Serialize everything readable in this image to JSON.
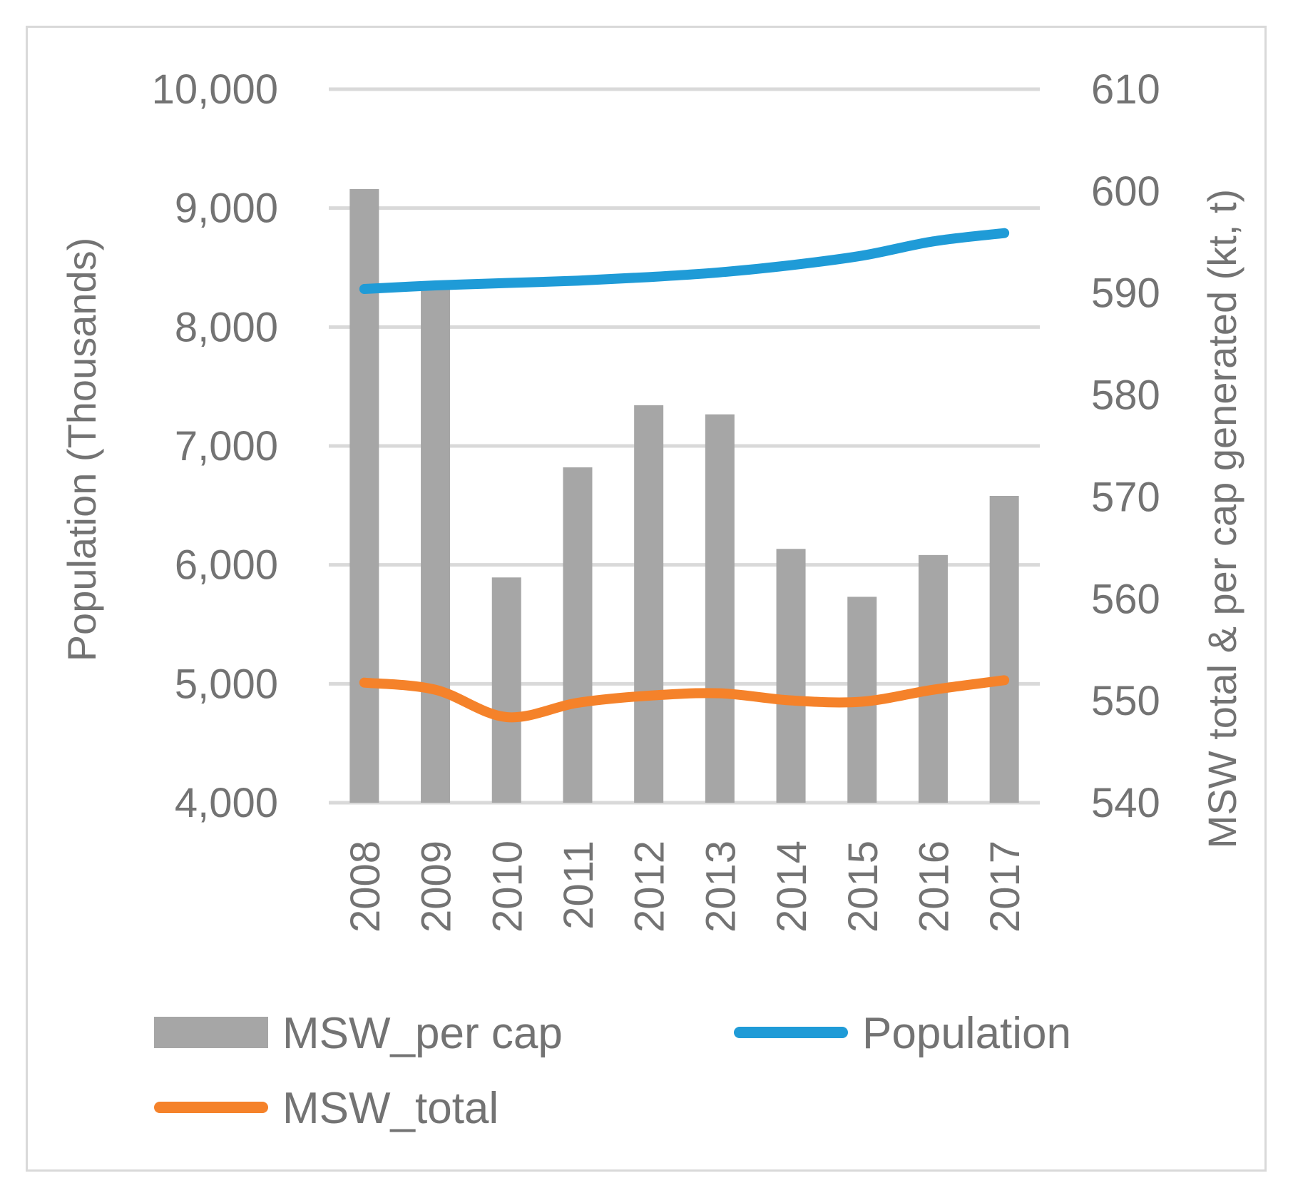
{
  "chart_data": {
    "type": "bar+line",
    "categories": [
      "2008",
      "2009",
      "2010",
      "2011",
      "2012",
      "2013",
      "2014",
      "2015",
      "2016",
      "2017"
    ],
    "y_left": {
      "label": "Population (Thousands)",
      "ylim": [
        4000,
        10000
      ],
      "ticks": [
        4000,
        5000,
        6000,
        7000,
        8000,
        9000,
        10000
      ],
      "tick_labels": [
        "4,000",
        "5,000",
        "6,000",
        "7,000",
        "8,000",
        "9,000",
        "10,000"
      ]
    },
    "y_right": {
      "label": "MSW total & per cap generated (kt, t)",
      "ylim": [
        540,
        610
      ],
      "ticks": [
        540,
        550,
        560,
        570,
        580,
        590,
        600,
        610
      ],
      "tick_labels": [
        "540",
        "550",
        "560",
        "570",
        "580",
        "590",
        "600",
        "610"
      ]
    },
    "series": [
      {
        "name": "MSW_per cap",
        "type": "bar",
        "axis": "right",
        "color": "#a6a6a6",
        "values": [
          600.2,
          590.5,
          562.1,
          572.9,
          579.0,
          578.1,
          564.9,
          560.2,
          564.3,
          570.1
        ]
      },
      {
        "name": "Population",
        "type": "line",
        "axis": "left",
        "color": "#1f9bd7",
        "values": [
          8320,
          8350,
          8370,
          8390,
          8420,
          8460,
          8520,
          8600,
          8720,
          8790
        ]
      },
      {
        "name": "MSW_total",
        "type": "line",
        "axis": "left",
        "color": "#f5822a",
        "values": [
          5010,
          4950,
          4720,
          4840,
          4900,
          4920,
          4860,
          4850,
          4950,
          5030
        ]
      }
    ],
    "legend": [
      {
        "name": "MSW_per cap",
        "kind": "bar",
        "color": "#a6a6a6"
      },
      {
        "name": "Population",
        "kind": "line",
        "color": "#1f9bd7"
      },
      {
        "name": "MSW_total",
        "kind": "line",
        "color": "#f5822a"
      }
    ],
    "gridlines": true,
    "legend_position": "bottom",
    "grid_color": "#d9d9d9"
  }
}
